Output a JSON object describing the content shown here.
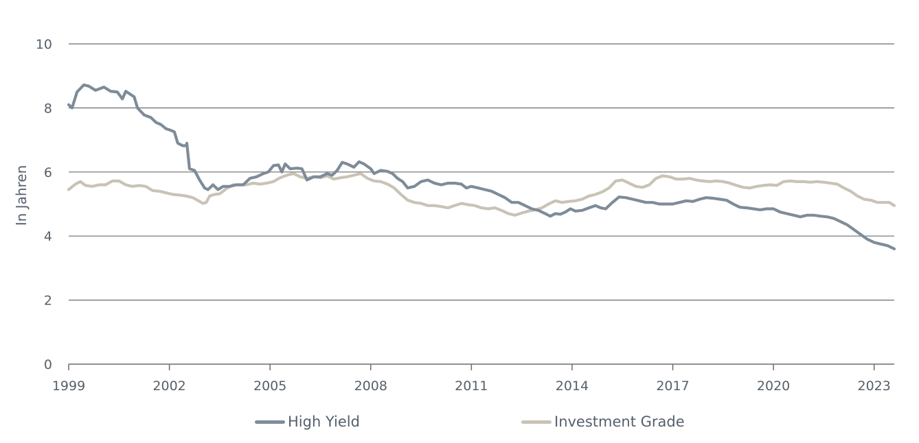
{
  "chart_data": {
    "type": "line",
    "xlabel": "",
    "ylabel": "In Jahren",
    "xlim": [
      1999.0,
      2023.6
    ],
    "ylim": [
      0,
      10
    ],
    "xticks": [
      1999,
      2002,
      2005,
      2008,
      2011,
      2014,
      2017,
      2020,
      2023
    ],
    "x_tick_labels": [
      "1999",
      "2002",
      "2005",
      "2008",
      "2011",
      "2014",
      "2017",
      "2020",
      "2023"
    ],
    "yticks": [
      0,
      2,
      4,
      6,
      8,
      10
    ],
    "y_tick_labels": [
      "0",
      "2",
      "4",
      "6",
      "8",
      "10"
    ],
    "grid": "horizontal",
    "legend_position": "bottom",
    "series": [
      {
        "name": "High Yield",
        "color": "#7e8c98",
        "points": [
          [
            1999.0,
            8.1
          ],
          [
            1999.1,
            8.0
          ],
          [
            1999.25,
            8.5
          ],
          [
            1999.45,
            8.72
          ],
          [
            1999.6,
            8.68
          ],
          [
            1999.8,
            8.55
          ],
          [
            2000.05,
            8.65
          ],
          [
            2000.25,
            8.52
          ],
          [
            2000.45,
            8.5
          ],
          [
            2000.6,
            8.28
          ],
          [
            2000.7,
            8.52
          ],
          [
            2000.95,
            8.35
          ],
          [
            2001.05,
            8.0
          ],
          [
            2001.25,
            7.78
          ],
          [
            2001.45,
            7.7
          ],
          [
            2001.6,
            7.55
          ],
          [
            2001.75,
            7.48
          ],
          [
            2001.9,
            7.35
          ],
          [
            2002.05,
            7.3
          ],
          [
            2002.15,
            7.25
          ],
          [
            2002.25,
            6.9
          ],
          [
            2002.4,
            6.82
          ],
          [
            2002.5,
            6.82
          ],
          [
            2002.52,
            6.9
          ],
          [
            2002.6,
            6.1
          ],
          [
            2002.75,
            6.05
          ],
          [
            2002.9,
            5.75
          ],
          [
            2003.05,
            5.5
          ],
          [
            2003.15,
            5.45
          ],
          [
            2003.3,
            5.6
          ],
          [
            2003.45,
            5.45
          ],
          [
            2003.6,
            5.55
          ],
          [
            2003.8,
            5.55
          ],
          [
            2004.0,
            5.6
          ],
          [
            2004.2,
            5.6
          ],
          [
            2004.4,
            5.8
          ],
          [
            2004.6,
            5.85
          ],
          [
            2004.8,
            5.95
          ],
          [
            2004.95,
            6.0
          ],
          [
            2005.1,
            6.2
          ],
          [
            2005.25,
            6.22
          ],
          [
            2005.35,
            6.0
          ],
          [
            2005.45,
            6.25
          ],
          [
            2005.6,
            6.1
          ],
          [
            2005.8,
            6.12
          ],
          [
            2005.95,
            6.1
          ],
          [
            2006.1,
            5.75
          ],
          [
            2006.3,
            5.85
          ],
          [
            2006.5,
            5.85
          ],
          [
            2006.7,
            5.95
          ],
          [
            2006.85,
            5.9
          ],
          [
            2007.0,
            6.05
          ],
          [
            2007.15,
            6.3
          ],
          [
            2007.3,
            6.25
          ],
          [
            2007.5,
            6.15
          ],
          [
            2007.65,
            6.32
          ],
          [
            2007.8,
            6.25
          ],
          [
            2008.0,
            6.1
          ],
          [
            2008.1,
            5.95
          ],
          [
            2008.3,
            6.05
          ],
          [
            2008.5,
            6.02
          ],
          [
            2008.65,
            5.95
          ],
          [
            2008.8,
            5.8
          ],
          [
            2008.95,
            5.7
          ],
          [
            2009.1,
            5.5
          ],
          [
            2009.3,
            5.55
          ],
          [
            2009.5,
            5.7
          ],
          [
            2009.7,
            5.75
          ],
          [
            2009.9,
            5.65
          ],
          [
            2010.1,
            5.6
          ],
          [
            2010.3,
            5.65
          ],
          [
            2010.5,
            5.65
          ],
          [
            2010.7,
            5.62
          ],
          [
            2010.85,
            5.5
          ],
          [
            2011.0,
            5.55
          ],
          [
            2011.2,
            5.5
          ],
          [
            2011.4,
            5.45
          ],
          [
            2011.6,
            5.4
          ],
          [
            2011.8,
            5.3
          ],
          [
            2012.0,
            5.2
          ],
          [
            2012.2,
            5.05
          ],
          [
            2012.4,
            5.05
          ],
          [
            2012.6,
            4.95
          ],
          [
            2012.8,
            4.85
          ],
          [
            2013.0,
            4.8
          ],
          [
            2013.2,
            4.7
          ],
          [
            2013.35,
            4.62
          ],
          [
            2013.5,
            4.7
          ],
          [
            2013.65,
            4.68
          ],
          [
            2013.8,
            4.75
          ],
          [
            2013.95,
            4.85
          ],
          [
            2014.1,
            4.78
          ],
          [
            2014.3,
            4.8
          ],
          [
            2014.5,
            4.88
          ],
          [
            2014.7,
            4.95
          ],
          [
            2014.85,
            4.88
          ],
          [
            2015.0,
            4.85
          ],
          [
            2015.2,
            5.05
          ],
          [
            2015.4,
            5.22
          ],
          [
            2015.6,
            5.2
          ],
          [
            2015.8,
            5.15
          ],
          [
            2016.0,
            5.1
          ],
          [
            2016.2,
            5.05
          ],
          [
            2016.4,
            5.05
          ],
          [
            2016.6,
            5.0
          ],
          [
            2016.8,
            5.0
          ],
          [
            2017.0,
            5.0
          ],
          [
            2017.2,
            5.05
          ],
          [
            2017.4,
            5.1
          ],
          [
            2017.6,
            5.08
          ],
          [
            2017.8,
            5.15
          ],
          [
            2018.0,
            5.2
          ],
          [
            2018.2,
            5.18
          ],
          [
            2018.4,
            5.15
          ],
          [
            2018.6,
            5.12
          ],
          [
            2018.8,
            5.0
          ],
          [
            2019.0,
            4.9
          ],
          [
            2019.2,
            4.88
          ],
          [
            2019.4,
            4.85
          ],
          [
            2019.6,
            4.82
          ],
          [
            2019.8,
            4.85
          ],
          [
            2020.0,
            4.85
          ],
          [
            2020.2,
            4.75
          ],
          [
            2020.4,
            4.7
          ],
          [
            2020.6,
            4.65
          ],
          [
            2020.8,
            4.6
          ],
          [
            2021.0,
            4.65
          ],
          [
            2021.2,
            4.65
          ],
          [
            2021.4,
            4.62
          ],
          [
            2021.6,
            4.6
          ],
          [
            2021.8,
            4.55
          ],
          [
            2022.0,
            4.45
          ],
          [
            2022.2,
            4.35
          ],
          [
            2022.4,
            4.2
          ],
          [
            2022.6,
            4.05
          ],
          [
            2022.8,
            3.9
          ],
          [
            2023.0,
            3.8
          ],
          [
            2023.2,
            3.75
          ],
          [
            2023.4,
            3.7
          ],
          [
            2023.6,
            3.6
          ]
        ]
      },
      {
        "name": "Investment Grade",
        "color": "#c9c3b6",
        "points": [
          [
            1999.0,
            5.45
          ],
          [
            1999.2,
            5.62
          ],
          [
            1999.35,
            5.7
          ],
          [
            1999.5,
            5.58
          ],
          [
            1999.7,
            5.55
          ],
          [
            1999.9,
            5.6
          ],
          [
            2000.1,
            5.6
          ],
          [
            2000.3,
            5.72
          ],
          [
            2000.5,
            5.72
          ],
          [
            2000.7,
            5.6
          ],
          [
            2000.9,
            5.55
          ],
          [
            2001.1,
            5.58
          ],
          [
            2001.3,
            5.55
          ],
          [
            2001.5,
            5.42
          ],
          [
            2001.7,
            5.4
          ],
          [
            2001.9,
            5.35
          ],
          [
            2002.1,
            5.3
          ],
          [
            2002.3,
            5.28
          ],
          [
            2002.5,
            5.25
          ],
          [
            2002.7,
            5.2
          ],
          [
            2002.9,
            5.08
          ],
          [
            2003.0,
            5.02
          ],
          [
            2003.1,
            5.05
          ],
          [
            2003.2,
            5.25
          ],
          [
            2003.35,
            5.3
          ],
          [
            2003.5,
            5.32
          ],
          [
            2003.7,
            5.48
          ],
          [
            2003.9,
            5.6
          ],
          [
            2004.1,
            5.6
          ],
          [
            2004.3,
            5.6
          ],
          [
            2004.5,
            5.65
          ],
          [
            2004.7,
            5.62
          ],
          [
            2004.9,
            5.65
          ],
          [
            2005.1,
            5.7
          ],
          [
            2005.3,
            5.82
          ],
          [
            2005.5,
            5.9
          ],
          [
            2005.7,
            5.95
          ],
          [
            2005.9,
            5.85
          ],
          [
            2006.1,
            5.8
          ],
          [
            2006.3,
            5.85
          ],
          [
            2006.5,
            5.82
          ],
          [
            2006.7,
            5.88
          ],
          [
            2006.9,
            5.78
          ],
          [
            2007.1,
            5.82
          ],
          [
            2007.3,
            5.85
          ],
          [
            2007.5,
            5.9
          ],
          [
            2007.7,
            5.95
          ],
          [
            2007.9,
            5.8
          ],
          [
            2008.1,
            5.72
          ],
          [
            2008.3,
            5.7
          ],
          [
            2008.5,
            5.62
          ],
          [
            2008.7,
            5.5
          ],
          [
            2008.9,
            5.3
          ],
          [
            2009.1,
            5.12
          ],
          [
            2009.3,
            5.05
          ],
          [
            2009.5,
            5.02
          ],
          [
            2009.7,
            4.95
          ],
          [
            2009.9,
            4.95
          ],
          [
            2010.1,
            4.92
          ],
          [
            2010.3,
            4.88
          ],
          [
            2010.5,
            4.95
          ],
          [
            2010.7,
            5.02
          ],
          [
            2010.9,
            4.98
          ],
          [
            2011.1,
            4.95
          ],
          [
            2011.3,
            4.88
          ],
          [
            2011.5,
            4.85
          ],
          [
            2011.7,
            4.88
          ],
          [
            2011.9,
            4.8
          ],
          [
            2012.1,
            4.7
          ],
          [
            2012.3,
            4.65
          ],
          [
            2012.5,
            4.72
          ],
          [
            2012.7,
            4.78
          ],
          [
            2012.9,
            4.82
          ],
          [
            2013.1,
            4.88
          ],
          [
            2013.3,
            5.0
          ],
          [
            2013.5,
            5.1
          ],
          [
            2013.7,
            5.05
          ],
          [
            2013.9,
            5.08
          ],
          [
            2014.1,
            5.1
          ],
          [
            2014.3,
            5.15
          ],
          [
            2014.5,
            5.25
          ],
          [
            2014.7,
            5.3
          ],
          [
            2014.9,
            5.38
          ],
          [
            2015.1,
            5.5
          ],
          [
            2015.3,
            5.72
          ],
          [
            2015.5,
            5.75
          ],
          [
            2015.7,
            5.65
          ],
          [
            2015.9,
            5.55
          ],
          [
            2016.1,
            5.52
          ],
          [
            2016.3,
            5.6
          ],
          [
            2016.5,
            5.8
          ],
          [
            2016.7,
            5.88
          ],
          [
            2016.9,
            5.85
          ],
          [
            2017.1,
            5.78
          ],
          [
            2017.3,
            5.78
          ],
          [
            2017.5,
            5.8
          ],
          [
            2017.7,
            5.75
          ],
          [
            2017.9,
            5.72
          ],
          [
            2018.1,
            5.7
          ],
          [
            2018.3,
            5.72
          ],
          [
            2018.5,
            5.7
          ],
          [
            2018.7,
            5.65
          ],
          [
            2018.9,
            5.58
          ],
          [
            2019.1,
            5.52
          ],
          [
            2019.3,
            5.5
          ],
          [
            2019.5,
            5.55
          ],
          [
            2019.7,
            5.58
          ],
          [
            2019.9,
            5.6
          ],
          [
            2020.1,
            5.58
          ],
          [
            2020.3,
            5.7
          ],
          [
            2020.5,
            5.72
          ],
          [
            2020.7,
            5.7
          ],
          [
            2020.9,
            5.7
          ],
          [
            2021.1,
            5.68
          ],
          [
            2021.3,
            5.7
          ],
          [
            2021.5,
            5.68
          ],
          [
            2021.7,
            5.65
          ],
          [
            2021.9,
            5.62
          ],
          [
            2022.1,
            5.5
          ],
          [
            2022.3,
            5.4
          ],
          [
            2022.5,
            5.25
          ],
          [
            2022.7,
            5.15
          ],
          [
            2022.9,
            5.12
          ],
          [
            2023.1,
            5.05
          ],
          [
            2023.3,
            5.05
          ],
          [
            2023.45,
            5.05
          ],
          [
            2023.6,
            4.95
          ]
        ]
      }
    ]
  }
}
